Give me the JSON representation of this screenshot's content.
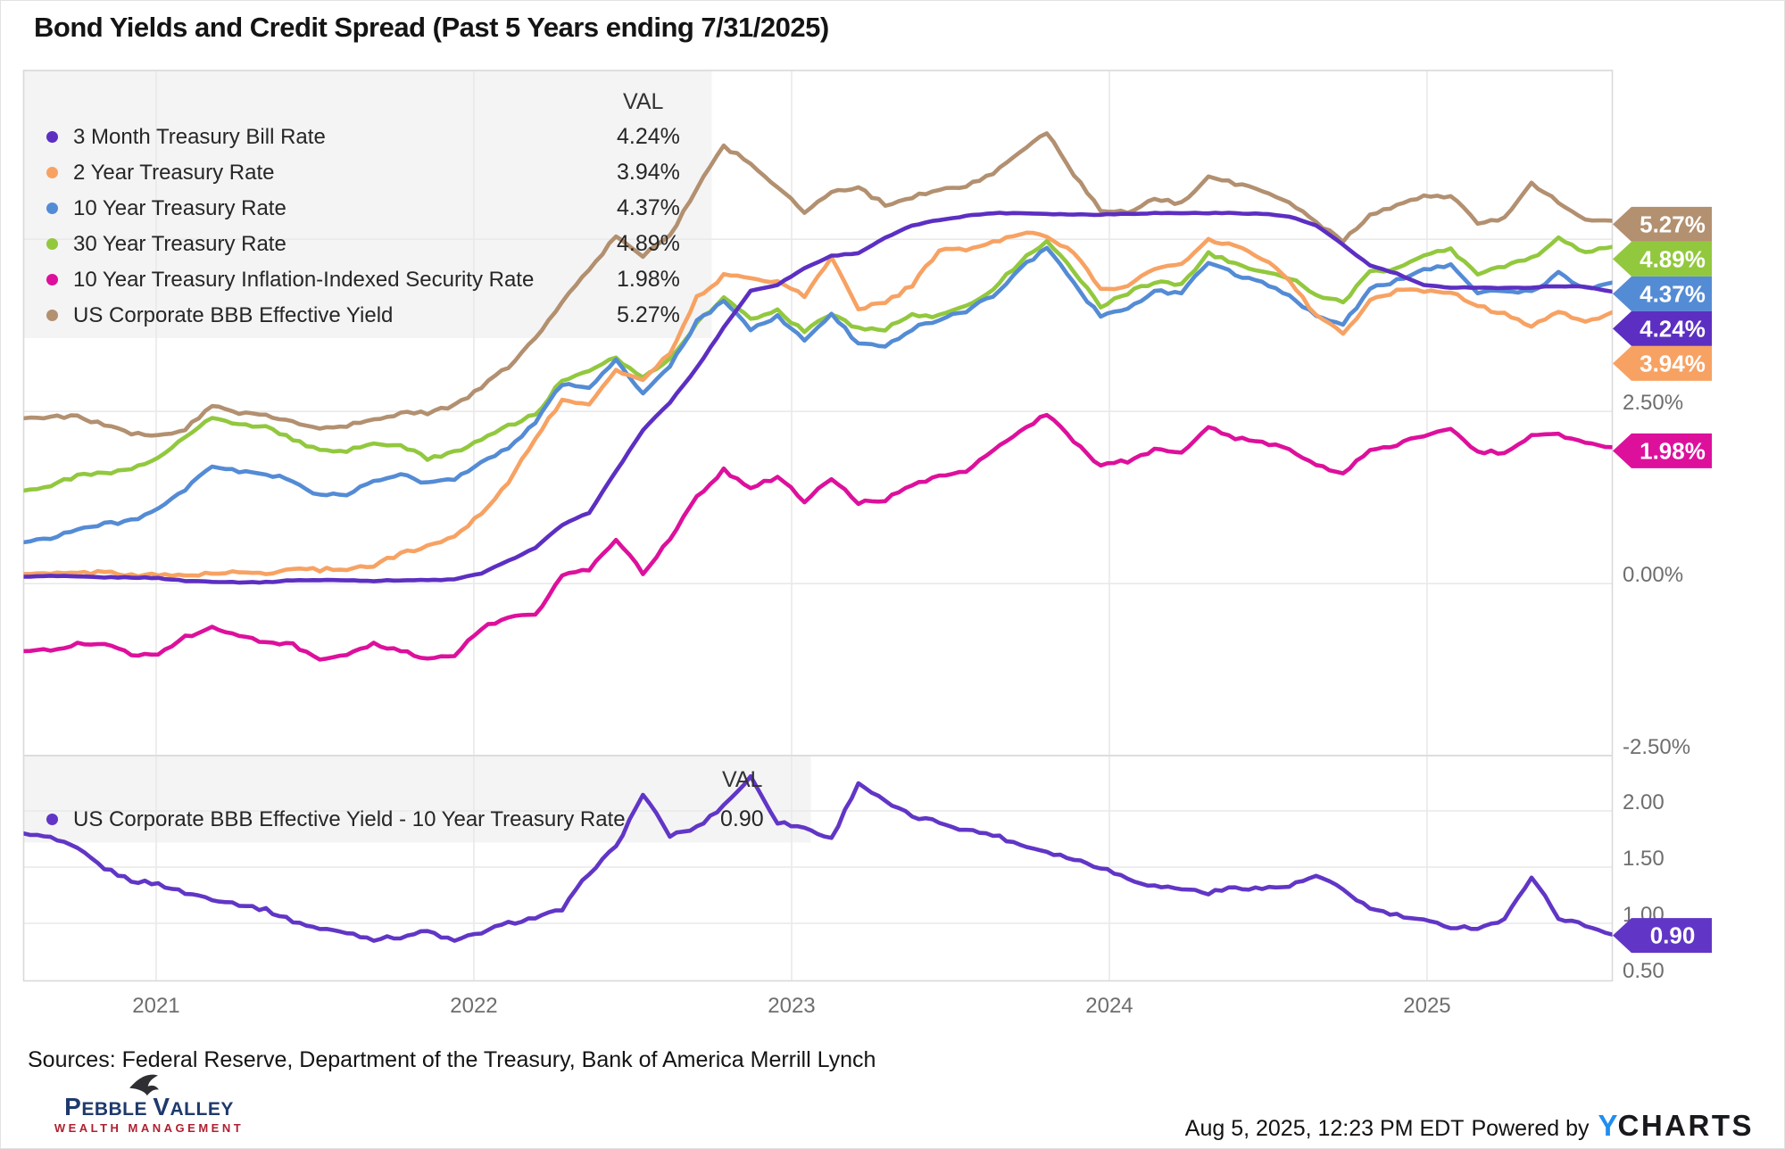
{
  "title": "Bond Yields and Credit Spread (Past 5 Years ending 7/31/2025)",
  "footer": {
    "sources": "Sources: Federal Reserve, Department of the Treasury, Bank of America Merrill Lynch",
    "timestamp": "Aug 5, 2025, 12:23 PM EDT",
    "powered_by": "Powered by",
    "ycharts_y": "Y",
    "ycharts_rest": "CHARTS",
    "brand": {
      "p1": "P",
      "p2": "EBBLE ",
      "p3": "V",
      "p4": "ALLEY",
      "subtitle": "WEALTH MANAGEMENT",
      "eagle_icon": "eagle-silhouette"
    }
  },
  "theme": {
    "grid": "#e9e9e9",
    "frame": "#d9d9d9",
    "separator": "#dddddd",
    "tick_label": "#6e6e6e",
    "legend_bg": "#f4f4f4",
    "badge_text": "#ffffff",
    "brand_navy": "#1e3a6d",
    "brand_red": "#b01f30",
    "ycharts_blue": "#1f8ef1"
  },
  "chart_data": [
    {
      "type": "line",
      "panel": "top",
      "val_header": "VAL",
      "x_range": {
        "start": "2020-08",
        "end": "2025-07",
        "frequency": "monthly",
        "start_decimal": 2020.583,
        "end_decimal": 2025.583
      },
      "x_ticks": [
        {
          "label": "2021",
          "t": 2021
        },
        {
          "label": "2022",
          "t": 2022
        },
        {
          "label": "2023",
          "t": 2023
        },
        {
          "label": "2024",
          "t": 2024
        },
        {
          "label": "2025",
          "t": 2025
        }
      ],
      "y_ticks": [
        {
          "label": "2.50%",
          "value": 2.5
        },
        {
          "label": "0.00%",
          "value": 0.0
        },
        {
          "label": "-2.50%",
          "value": -2.5
        }
      ],
      "y_gridlines": [
        5.0,
        2.5,
        0.0
      ],
      "ylim": [
        -2.5,
        7.45
      ],
      "grid": true,
      "legend_position": "top-left",
      "series": [
        {
          "name": "3 Month Treasury Bill Rate",
          "val_label": "4.24%",
          "end_value": 4.24,
          "color": "#5c2fc2",
          "values": [
            0.1,
            0.11,
            0.1,
            0.09,
            0.09,
            0.08,
            0.04,
            0.03,
            0.02,
            0.02,
            0.05,
            0.05,
            0.05,
            0.04,
            0.05,
            0.05,
            0.06,
            0.15,
            0.33,
            0.52,
            0.85,
            1.03,
            1.63,
            2.23,
            2.63,
            3.13,
            3.72,
            4.25,
            4.34,
            4.58,
            4.76,
            4.8,
            5.02,
            5.2,
            5.28,
            5.34,
            5.38,
            5.38,
            5.37,
            5.36,
            5.36,
            5.37,
            5.38,
            5.38,
            5.38,
            5.38,
            5.37,
            5.33,
            5.2,
            4.92,
            4.62,
            4.5,
            4.33,
            4.3,
            4.3,
            4.29,
            4.3,
            4.32,
            4.31,
            4.24
          ]
        },
        {
          "name": "2 Year Treasury Rate",
          "val_label": "3.94%",
          "end_value": 3.94,
          "color": "#f7a263",
          "values": [
            0.14,
            0.14,
            0.15,
            0.17,
            0.13,
            0.12,
            0.12,
            0.15,
            0.16,
            0.15,
            0.22,
            0.2,
            0.22,
            0.26,
            0.44,
            0.54,
            0.69,
            1.02,
            1.47,
            2.12,
            2.65,
            2.62,
            3.08,
            2.97,
            3.35,
            4.15,
            4.47,
            4.45,
            4.38,
            4.18,
            4.73,
            4.0,
            4.08,
            4.33,
            4.84,
            4.85,
            4.95,
            5.09,
            5.06,
            4.8,
            4.28,
            4.31,
            4.58,
            4.63,
            4.98,
            4.9,
            4.73,
            4.4,
            3.9,
            3.62,
            4.1,
            4.25,
            4.25,
            4.24,
            4.03,
            3.91,
            3.75,
            3.95,
            3.78,
            3.94
          ]
        },
        {
          "name": "10 Year Treasury Rate",
          "val_label": "4.37%",
          "end_value": 4.37,
          "color": "#548bd5",
          "values": [
            0.6,
            0.67,
            0.79,
            0.86,
            0.92,
            1.07,
            1.36,
            1.71,
            1.62,
            1.6,
            1.49,
            1.27,
            1.3,
            1.48,
            1.58,
            1.46,
            1.51,
            1.78,
            1.97,
            2.34,
            2.9,
            2.85,
            3.25,
            2.75,
            3.15,
            3.8,
            4.1,
            3.7,
            3.88,
            3.52,
            3.92,
            3.48,
            3.45,
            3.7,
            3.84,
            3.96,
            4.18,
            4.57,
            4.88,
            4.35,
            3.88,
            3.99,
            4.25,
            4.2,
            4.68,
            4.5,
            4.36,
            4.17,
            3.91,
            3.75,
            4.28,
            4.4,
            4.57,
            4.63,
            4.24,
            4.25,
            4.23,
            4.51,
            4.28,
            4.37
          ]
        },
        {
          "name": "30 Year Treasury Rate",
          "val_label": "4.89%",
          "end_value": 4.89,
          "color": "#92c83e",
          "values": [
            1.35,
            1.42,
            1.57,
            1.6,
            1.65,
            1.83,
            2.15,
            2.41,
            2.3,
            2.28,
            2.1,
            1.92,
            1.92,
            2.04,
            2.0,
            1.82,
            1.9,
            2.11,
            2.29,
            2.45,
            2.95,
            3.07,
            3.28,
            3.0,
            3.27,
            3.78,
            4.15,
            3.85,
            3.97,
            3.65,
            3.93,
            3.7,
            3.7,
            3.9,
            3.88,
            4.02,
            4.29,
            4.66,
            4.99,
            4.52,
            4.03,
            4.22,
            4.38,
            4.35,
            4.79,
            4.65,
            4.51,
            4.44,
            4.2,
            4.08,
            4.53,
            4.58,
            4.78,
            4.85,
            4.51,
            4.6,
            4.72,
            5.02,
            4.82,
            4.89
          ]
        },
        {
          "name": "10 Year Treasury Inflation-Indexed Security Rate",
          "val_label": "1.98%",
          "end_value": 1.98,
          "color": "#dd109c",
          "values": [
            -0.98,
            -0.95,
            -0.88,
            -0.86,
            -1.03,
            -1.01,
            -0.78,
            -0.64,
            -0.77,
            -0.84,
            -0.89,
            -1.12,
            -1.05,
            -0.88,
            -0.97,
            -1.11,
            -1.04,
            -0.65,
            -0.48,
            -0.47,
            0.12,
            0.2,
            0.65,
            0.15,
            0.65,
            1.25,
            1.65,
            1.4,
            1.55,
            1.2,
            1.52,
            1.18,
            1.22,
            1.42,
            1.55,
            1.62,
            1.92,
            2.2,
            2.47,
            2.05,
            1.72,
            1.78,
            1.95,
            1.88,
            2.26,
            2.12,
            2.05,
            1.95,
            1.72,
            1.58,
            1.95,
            2.02,
            2.15,
            2.23,
            1.92,
            1.9,
            2.15,
            2.18,
            2.02,
            1.98
          ]
        },
        {
          "name": "US Corporate BBB Effective Yield",
          "val_label": "5.27%",
          "end_value": 5.27,
          "color": "#b29070",
          "values": [
            2.4,
            2.42,
            2.42,
            2.3,
            2.17,
            2.15,
            2.25,
            2.58,
            2.48,
            2.45,
            2.36,
            2.26,
            2.3,
            2.37,
            2.48,
            2.48,
            2.58,
            2.85,
            3.15,
            3.55,
            4.1,
            4.55,
            5.05,
            4.75,
            5.05,
            5.75,
            6.35,
            6.1,
            5.75,
            5.4,
            5.7,
            5.75,
            5.5,
            5.62,
            5.72,
            5.78,
            5.95,
            6.25,
            6.55,
            5.95,
            5.42,
            5.38,
            5.58,
            5.52,
            5.93,
            5.8,
            5.7,
            5.52,
            5.25,
            4.97,
            5.35,
            5.5,
            5.62,
            5.62,
            5.25,
            5.3,
            5.82,
            5.55,
            5.3,
            5.27
          ]
        }
      ]
    },
    {
      "type": "line",
      "panel": "bottom",
      "val_header": "VAL",
      "x_range": {
        "start": "2020-08",
        "end": "2025-07",
        "frequency": "monthly",
        "start_decimal": 2020.583,
        "end_decimal": 2025.583
      },
      "y_ticks": [
        {
          "label": "2.00",
          "value": 2.0
        },
        {
          "label": "1.50",
          "value": 1.5
        },
        {
          "label": "1.00",
          "value": 1.0
        },
        {
          "label": "0.50",
          "value": 0.5
        }
      ],
      "y_gridlines": [
        2.0,
        1.5,
        1.0
      ],
      "ylim": [
        0.45,
        2.53
      ],
      "grid": true,
      "legend_position": "top-left",
      "series": [
        {
          "name": "US Corporate BBB Effective Yield - 10 Year Treasury Rate",
          "val_label": "0.90",
          "end_value": 0.9,
          "color": "#6136c6",
          "values": [
            1.8,
            1.76,
            1.66,
            1.49,
            1.38,
            1.35,
            1.27,
            1.22,
            1.17,
            1.12,
            1.02,
            0.95,
            0.92,
            0.86,
            0.88,
            0.93,
            0.84,
            0.92,
            1.0,
            1.05,
            1.12,
            1.45,
            1.68,
            2.15,
            1.78,
            1.85,
            2.05,
            2.3,
            1.9,
            1.85,
            1.75,
            2.25,
            2.08,
            1.95,
            1.9,
            1.83,
            1.79,
            1.7,
            1.64,
            1.57,
            1.5,
            1.4,
            1.33,
            1.31,
            1.27,
            1.32,
            1.31,
            1.33,
            1.42,
            1.3,
            1.13,
            1.07,
            1.02,
            0.97,
            0.96,
            1.03,
            1.42,
            1.05,
            0.98,
            0.9
          ]
        }
      ]
    }
  ]
}
